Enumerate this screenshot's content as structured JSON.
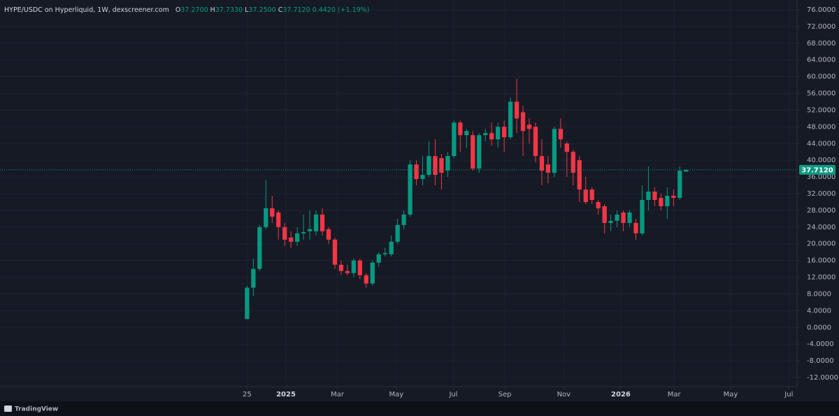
{
  "header": {
    "title": "HYPE/USDC on Hyperliquid, 1W, dexscreener.com",
    "ohlc": [
      {
        "label": "O",
        "value": "37.2700"
      },
      {
        "label": "H",
        "value": "37.7330"
      },
      {
        "label": "L",
        "value": "37.2500"
      },
      {
        "label": "C",
        "value": "37.7120"
      }
    ],
    "change": "0.4420 (+1.19%)"
  },
  "brand": "TradingView",
  "chart_data": {
    "type": "candlestick",
    "up_color": "#089981",
    "down_color": "#f23645",
    "grid": true,
    "open": [
      2,
      9.5,
      14,
      24,
      28.5,
      27.5,
      24,
      21.5,
      20.5,
      22.5,
      23,
      23,
      27,
      23.5,
      21,
      15,
      13.5,
      13,
      16,
      12.5,
      10.5,
      15.5,
      17.5,
      17.5,
      20.5,
      24.5,
      27,
      39,
      35.5,
      36.5,
      41,
      40.5,
      37.5,
      41,
      49,
      46,
      46,
      38,
      46,
      46.5,
      45,
      48,
      45.5,
      54,
      51.5,
      48.5,
      48,
      41,
      39,
      37,
      47.5,
      44,
      42,
      40,
      33,
      33,
      30,
      29,
      25,
      25.5,
      27.5,
      25,
      25,
      22.5,
      30.5,
      32.5,
      31,
      29,
      31.5,
      31,
      37.27
    ],
    "high": [
      10,
      16.5,
      24.5,
      35.2,
      31.5,
      28,
      25,
      23,
      24,
      27,
      28,
      28,
      28.5,
      24,
      21.5,
      16,
      15,
      16.5,
      16.5,
      13,
      16,
      18,
      19,
      22,
      26,
      28,
      40,
      40,
      41,
      44.5,
      45,
      41.5,
      42,
      49.5,
      49.5,
      47.5,
      47,
      46.5,
      47.5,
      49,
      49,
      49.5,
      55,
      59.5,
      53,
      50,
      49,
      45,
      41,
      48,
      50,
      44.5,
      42.5,
      41,
      36,
      33.5,
      30.5,
      29.5,
      27,
      28,
      28,
      28,
      26,
      34,
      38.5,
      33.5,
      32,
      33.5,
      33,
      38.5,
      37.733
    ],
    "low": [
      2,
      7.5,
      13.5,
      23.5,
      25,
      21,
      19.5,
      19,
      19.5,
      21,
      21,
      22,
      22,
      20,
      14,
      12.5,
      12.5,
      12,
      11.5,
      9.5,
      10,
      14.5,
      17,
      17,
      20,
      23.5,
      26.5,
      34,
      34,
      36,
      34,
      33,
      36,
      40.5,
      42,
      43,
      37.5,
      37,
      44.5,
      43.5,
      43,
      42,
      45,
      46.5,
      41,
      44,
      39.5,
      34,
      34.5,
      36,
      43,
      36,
      34,
      30,
      29.5,
      29.5,
      27,
      22.5,
      23,
      24,
      23,
      24,
      21,
      22,
      28,
      29,
      28,
      26,
      29,
      30.5,
      37.25
    ],
    "close": [
      9.5,
      14,
      24,
      28.5,
      26.5,
      24,
      21,
      20.5,
      22.5,
      22.8,
      23.5,
      27,
      23,
      21,
      15,
      13.5,
      13,
      16,
      12.5,
      10.5,
      15.5,
      17.5,
      17.8,
      20.5,
      24.5,
      27,
      39,
      35.5,
      36.5,
      41,
      36.5,
      37,
      41,
      49,
      46,
      47,
      38,
      46,
      46.5,
      45,
      48,
      45.5,
      54,
      50,
      47,
      47.5,
      41,
      37.5,
      37,
      47.5,
      45,
      42,
      37,
      33,
      30,
      30.5,
      28.5,
      25,
      25.5,
      27,
      25,
      27.5,
      22.5,
      30.5,
      32.5,
      30.5,
      29,
      31.5,
      31,
      37.5,
      37.712
    ],
    "last_price": {
      "value": 37.712,
      "label": "37.7120"
    },
    "ylim": [
      -14.17,
      78.34
    ],
    "yticks": [
      {
        "value": 76,
        "label": "76.0000"
      },
      {
        "value": 72,
        "label": "72.0000"
      },
      {
        "value": 68,
        "label": "68.0000"
      },
      {
        "value": 64,
        "label": "64.0000"
      },
      {
        "value": 60,
        "label": "60.0000"
      },
      {
        "value": 56,
        "label": "56.0000"
      },
      {
        "value": 52,
        "label": "52.0000"
      },
      {
        "value": 48,
        "label": "48.0000"
      },
      {
        "value": 44,
        "label": "44.0000"
      },
      {
        "value": 40,
        "label": "40.0000"
      },
      {
        "value": 36,
        "label": "36.0000"
      },
      {
        "value": 32,
        "label": "32.0000"
      },
      {
        "value": 28,
        "label": "28.0000"
      },
      {
        "value": 24,
        "label": "24.0000"
      },
      {
        "value": 20,
        "label": "20.0000"
      },
      {
        "value": 16,
        "label": "16.0000"
      },
      {
        "value": 12,
        "label": "12.0000"
      },
      {
        "value": 8,
        "label": "8.0000"
      },
      {
        "value": 4,
        "label": "4.0000"
      },
      {
        "value": 0,
        "label": "0.0000"
      },
      {
        "value": -4,
        "label": "-4.0000"
      },
      {
        "value": -8,
        "label": "-8.0000"
      },
      {
        "value": -12,
        "label": "-12.0000"
      }
    ],
    "xlim": [
      -39.4,
      87.7
    ],
    "xticks": [
      {
        "value": 0,
        "label": "25"
      },
      {
        "value": 6.2,
        "label": "2025"
      },
      {
        "value": 14.4,
        "label": "Mar"
      },
      {
        "value": 23.8,
        "label": "May"
      },
      {
        "value": 32.9,
        "label": "Jul"
      },
      {
        "value": 41.1,
        "label": "Sep"
      },
      {
        "value": 50.5,
        "label": "Nov"
      },
      {
        "value": 59.6,
        "label": "2026"
      },
      {
        "value": 68.1,
        "label": "Mar"
      },
      {
        "value": 77.1,
        "label": "May"
      },
      {
        "value": 86.4,
        "label": "Jul"
      }
    ]
  }
}
